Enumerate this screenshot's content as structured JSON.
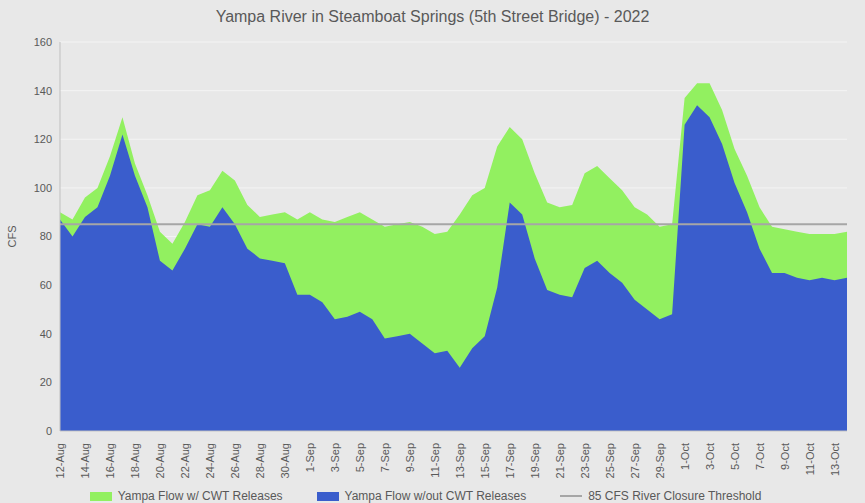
{
  "chart_data": {
    "type": "area",
    "title": "Yampa River in Steamboat Springs (5th Street Bridge) - 2022",
    "y_label": "CFS",
    "stacked": false,
    "grid": true,
    "legend": "bottom",
    "ylim": [
      0,
      160
    ],
    "yticks": [
      0,
      20,
      40,
      60,
      80,
      100,
      120,
      140,
      160
    ],
    "categories": [
      "12-Aug",
      null,
      "14-Aug",
      null,
      "16-Aug",
      null,
      "18-Aug",
      null,
      "20-Aug",
      null,
      "22-Aug",
      null,
      "24-Aug",
      null,
      "26-Aug",
      null,
      "28-Aug",
      null,
      "30-Aug",
      null,
      "1-Sep",
      null,
      "3-Sep",
      null,
      "5-Sep",
      null,
      "7-Sep",
      null,
      "9-Sep",
      null,
      "11-Sep",
      null,
      "13-Sep",
      null,
      "15-Sep",
      null,
      "17-Sep",
      null,
      "19-Sep",
      null,
      "21-Sep",
      null,
      "23-Sep",
      null,
      "25-Sep",
      null,
      "27-Sep",
      null,
      "29-Sep",
      null,
      "1-Oct",
      null,
      "3-Oct",
      null,
      "5-Oct",
      null,
      "7-Oct",
      null,
      "9-Oct",
      null,
      "11-Oct",
      null,
      "13-Oct",
      null
    ],
    "series": [
      {
        "name": "Yampa Flow w/ CWT Releases",
        "type": "area",
        "color": "#92f060",
        "values": [
          90,
          87,
          96,
          100,
          113,
          129,
          110,
          97,
          82,
          77,
          86,
          97,
          99,
          107,
          103,
          93,
          88,
          89,
          90,
          87,
          90,
          87,
          86,
          88,
          90,
          87,
          84,
          85,
          86,
          84,
          81,
          82,
          89,
          97,
          100,
          117,
          125,
          120,
          106,
          94,
          92,
          93,
          106,
          109,
          104,
          99,
          92,
          89,
          84,
          85,
          137,
          143,
          143,
          132,
          116,
          105,
          92,
          84,
          83,
          82,
          81,
          81,
          81,
          82
        ]
      },
      {
        "name": "Yampa Flow w/out CWT Releases",
        "type": "area",
        "color": "#3a5dcc",
        "values": [
          87,
          80,
          88,
          92,
          105,
          122,
          105,
          92,
          70,
          66,
          75,
          85,
          84,
          92,
          85,
          75,
          71,
          70,
          69,
          56,
          56,
          53,
          46,
          47,
          49,
          46,
          38,
          39,
          40,
          36,
          32,
          33,
          26,
          34,
          39,
          59,
          94,
          89,
          71,
          58,
          56,
          55,
          67,
          70,
          65,
          61,
          54,
          50,
          46,
          48,
          126,
          134,
          129,
          118,
          102,
          90,
          75,
          65,
          65,
          63,
          62,
          63,
          62,
          63
        ]
      },
      {
        "name": "85 CFS River Closure Threshold",
        "type": "line",
        "color": "#a6a6a6",
        "values": [
          85,
          85,
          85,
          85,
          85,
          85,
          85,
          85,
          85,
          85,
          85,
          85,
          85,
          85,
          85,
          85,
          85,
          85,
          85,
          85,
          85,
          85,
          85,
          85,
          85,
          85,
          85,
          85,
          85,
          85,
          85,
          85,
          85,
          85,
          85,
          85,
          85,
          85,
          85,
          85,
          85,
          85,
          85,
          85,
          85,
          85,
          85,
          85,
          85,
          85,
          85,
          85,
          85,
          85,
          85,
          85,
          85,
          85,
          85,
          85,
          85,
          85,
          85,
          85
        ]
      }
    ]
  }
}
